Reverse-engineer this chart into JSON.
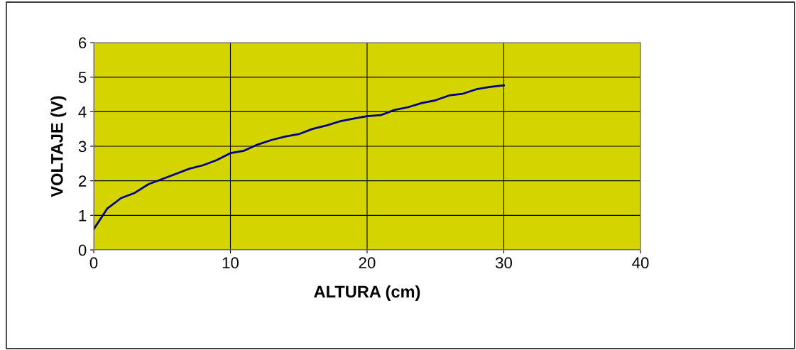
{
  "chart_data": {
    "type": "line",
    "xlabel": "ALTURA (cm)",
    "ylabel": "VOLTAJE (V)",
    "x": [
      0,
      1,
      2,
      3,
      4,
      5,
      6,
      7,
      8,
      9,
      10,
      11,
      12,
      13,
      14,
      15,
      16,
      17,
      18,
      19,
      20,
      21,
      22,
      23,
      24,
      25,
      26,
      27,
      28,
      29,
      30
    ],
    "series": [
      {
        "color": "#000080",
        "values": [
          0.6,
          1.2,
          1.5,
          1.65,
          1.9,
          2.05,
          2.2,
          2.35,
          2.45,
          2.6,
          2.8,
          2.87,
          3.05,
          3.18,
          3.28,
          3.35,
          3.5,
          3.6,
          3.72,
          3.8,
          3.87,
          3.9,
          4.05,
          4.13,
          4.25,
          4.33,
          4.47,
          4.52,
          4.65,
          4.72,
          4.76
        ]
      }
    ],
    "xlim": [
      0,
      40
    ],
    "xticks": [
      0,
      10,
      20,
      30,
      40
    ],
    "ylim": [
      0,
      6
    ],
    "yticks": [
      0,
      1,
      2,
      3,
      4,
      5,
      6
    ],
    "grid": true,
    "legend": false,
    "marker": "none",
    "line_style": "solid"
  }
}
